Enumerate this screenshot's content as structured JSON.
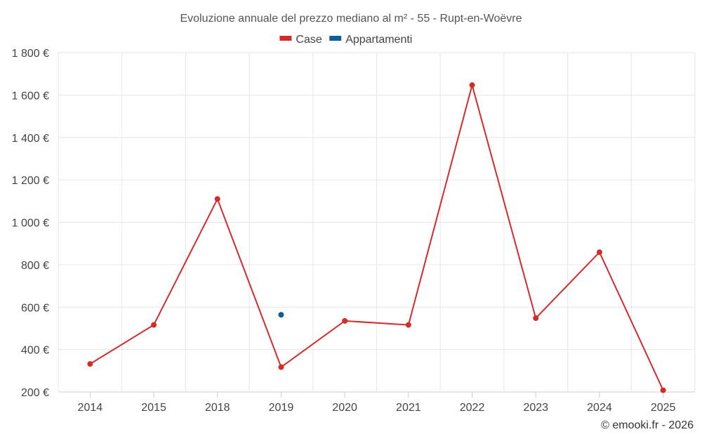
{
  "chart_data": {
    "type": "line",
    "title": "Evoluzione annuale del prezzo mediano al m² - 55 - Rupt-en-Woëvre",
    "categories": [
      "2014",
      "2015",
      "2018",
      "2019",
      "2020",
      "2021",
      "2022",
      "2023",
      "2024",
      "2025"
    ],
    "series": [
      {
        "name": "Case",
        "color": "#d42a2a",
        "values": [
          332,
          516,
          1110,
          317,
          535,
          516,
          1647,
          548,
          859,
          208
        ]
      },
      {
        "name": "Appartamenti",
        "color": "#0b6196",
        "values": [
          null,
          null,
          null,
          564,
          null,
          null,
          null,
          null,
          null,
          null
        ]
      }
    ],
    "ylim": [
      200,
      1800
    ],
    "yticks": [
      200,
      400,
      600,
      800,
      1000,
      1200,
      1400,
      1600,
      1800
    ],
    "ytick_labels": [
      "200 €",
      "400 €",
      "600 €",
      "800 €",
      "1 000 €",
      "1 200 €",
      "1 400 €",
      "1 600 €",
      "1 800 €"
    ],
    "grid": true,
    "legend_position": "top-center",
    "credit": "© emooki.fr - 2026"
  }
}
